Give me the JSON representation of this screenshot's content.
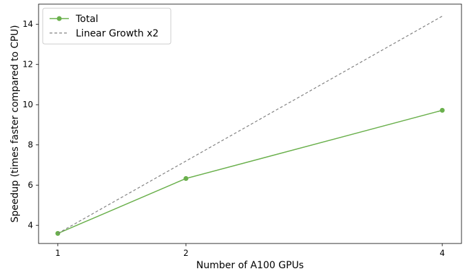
{
  "chart_data": {
    "type": "line",
    "x": [
      1,
      2,
      4
    ],
    "series": [
      {
        "name": "Total",
        "values": [
          3.6,
          6.33,
          9.72
        ],
        "color": "#6ab04c",
        "style": "solid",
        "marker": "circle"
      },
      {
        "name": "Linear Growth x2",
        "values": [
          3.6,
          7.2,
          14.4
        ],
        "color": "#808080",
        "style": "dashed",
        "marker": "none"
      }
    ],
    "xticks": [
      "1",
      "2",
      "4"
    ],
    "yticks": [
      "4",
      "6",
      "8",
      "10",
      "12",
      "14"
    ],
    "xlabel": "Number of A100 GPUs",
    "ylabel": "Speedup (times faster compared to CPU)",
    "xlim": [
      0.85,
      4.15
    ],
    "ylim": [
      3.1,
      15.0
    ],
    "grid": false,
    "legend_position": "top-left"
  }
}
